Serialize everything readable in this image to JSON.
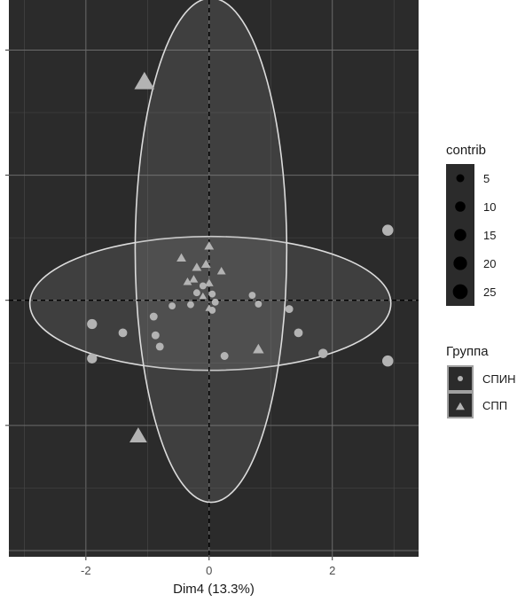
{
  "chart_data": {
    "type": "scatter",
    "title": "",
    "xlabel": "Dim4 (13.3%)",
    "ylabel": "",
    "xlim": [
      -3.25,
      3.4
    ],
    "ylim": [
      -4.1,
      4.8
    ],
    "x_ticks": [
      -2,
      0,
      2
    ],
    "x_tick_labels": [
      "-2",
      "0",
      "2"
    ],
    "y_ticks": [
      -2,
      0,
      2,
      4
    ],
    "y_tick_labels": [
      "",
      "",
      "",
      ""
    ],
    "grid": true,
    "reference_lines": {
      "x": 0,
      "y": 0,
      "style": "dashed"
    },
    "colors": {
      "panel": "#2b2b2b",
      "grid_major": "#6b6b6b",
      "grid_minor": "#4a4a4a",
      "points": "#b3b3b3",
      "ellipse_line": "#dcdcdc",
      "ellipse_fill": "#8a8a8a",
      "ref_line": "#000000"
    },
    "series": [
      {
        "name": "СПИН",
        "shape": "circle",
        "points": [
          {
            "x": -1.9,
            "y": -0.38,
            "contrib": 6
          },
          {
            "x": -1.9,
            "y": -0.93,
            "contrib": 6
          },
          {
            "x": -1.4,
            "y": -0.52,
            "contrib": 4
          },
          {
            "x": -0.9,
            "y": -0.26,
            "contrib": 3
          },
          {
            "x": -0.87,
            "y": -0.56,
            "contrib": 3
          },
          {
            "x": -0.8,
            "y": -0.74,
            "contrib": 3
          },
          {
            "x": -0.6,
            "y": -0.09,
            "contrib": 2
          },
          {
            "x": -0.3,
            "y": -0.07,
            "contrib": 2
          },
          {
            "x": -0.2,
            "y": 0.12,
            "contrib": 2
          },
          {
            "x": -0.1,
            "y": 0.23,
            "contrib": 2
          },
          {
            "x": 0.05,
            "y": 0.1,
            "contrib": 2
          },
          {
            "x": 0.05,
            "y": -0.16,
            "contrib": 2
          },
          {
            "x": 0.1,
            "y": -0.03,
            "contrib": 2
          },
          {
            "x": 0.25,
            "y": -0.89,
            "contrib": 3
          },
          {
            "x": 0.7,
            "y": 0.08,
            "contrib": 2
          },
          {
            "x": 0.8,
            "y": -0.06,
            "contrib": 2
          },
          {
            "x": 1.3,
            "y": -0.14,
            "contrib": 3
          },
          {
            "x": 1.45,
            "y": -0.52,
            "contrib": 4
          },
          {
            "x": 1.85,
            "y": -0.85,
            "contrib": 5
          },
          {
            "x": 2.9,
            "y": 1.12,
            "contrib": 8
          },
          {
            "x": 2.9,
            "y": -0.97,
            "contrib": 8
          }
        ]
      },
      {
        "name": "СПП",
        "shape": "triangle",
        "points": [
          {
            "x": -1.05,
            "y": 3.48,
            "contrib": 28
          },
          {
            "x": -1.15,
            "y": -2.18,
            "contrib": 20
          },
          {
            "x": -0.45,
            "y": 0.67,
            "contrib": 4
          },
          {
            "x": -0.2,
            "y": 0.52,
            "contrib": 4
          },
          {
            "x": -0.05,
            "y": 0.57,
            "contrib": 4
          },
          {
            "x": 0,
            "y": 0.86,
            "contrib": 4
          },
          {
            "x": 0.2,
            "y": 0.46,
            "contrib": 3
          },
          {
            "x": -0.25,
            "y": 0.33,
            "contrib": 3
          },
          {
            "x": -0.35,
            "y": 0.29,
            "contrib": 3
          },
          {
            "x": 0,
            "y": 0.27,
            "contrib": 3
          },
          {
            "x": -0.1,
            "y": 0.06,
            "contrib": 2
          },
          {
            "x": 0,
            "y": -0.13,
            "contrib": 2
          },
          {
            "x": 0.8,
            "y": -0.79,
            "contrib": 6
          }
        ]
      }
    ],
    "ellipses": [
      {
        "group": "СПИН",
        "cx": 0.02,
        "cy": -0.05,
        "rx": 2.93,
        "ry": 1.07,
        "angle": 0
      },
      {
        "group": "СПП",
        "cx": 0.03,
        "cy": 0.8,
        "rx": 1.23,
        "ry": 4.03,
        "angle": 0
      }
    ],
    "legend": {
      "placement": "right",
      "size_title": "contrib",
      "size_entries": [
        5,
        10,
        15,
        20,
        25
      ],
      "group_title": "Группа",
      "group_entries": [
        "СПИН",
        "СПП"
      ]
    }
  }
}
